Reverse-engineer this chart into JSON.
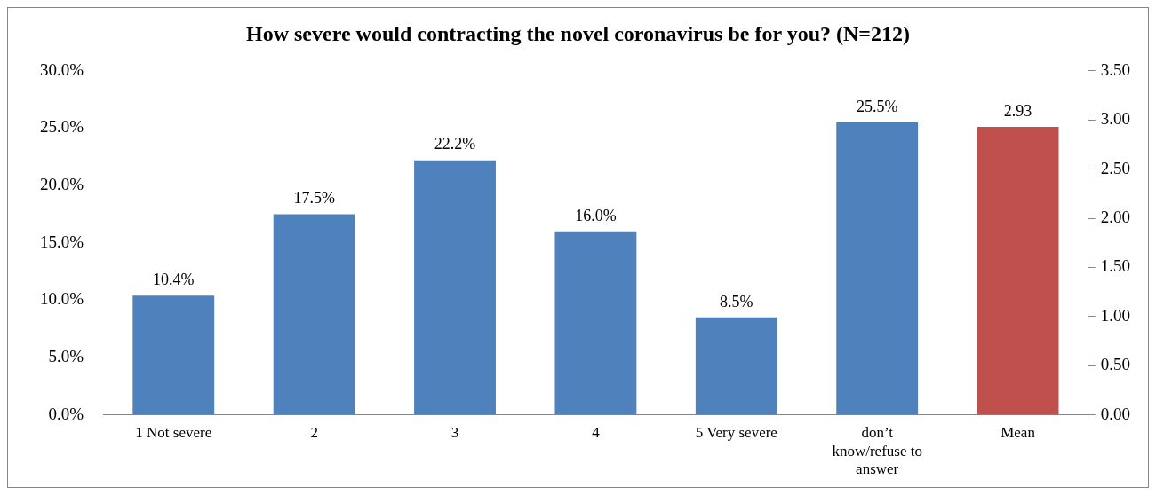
{
  "chart_data": {
    "type": "bar",
    "title": "How severe would contracting the novel coronavirus be for you? (N=212)",
    "categories": [
      "1 Not severe",
      "2",
      "3",
      "4",
      "5 Very severe",
      "don’t know/refuse to answer",
      "Mean"
    ],
    "series": [
      {
        "color": "#4f81bd",
        "values": [
          10.4,
          17.5,
          22.2,
          16.0,
          8.5,
          25.5,
          null
        ],
        "value_labels": [
          "10.4%",
          "17.5%",
          "22.2%",
          "16.0%",
          "8.5%",
          "25.5%",
          null
        ]
      },
      {
        "color": "#c0504d",
        "axis": "y2",
        "values": [
          null,
          null,
          null,
          null,
          null,
          null,
          2.93
        ],
        "value_labels": [
          null,
          null,
          null,
          null,
          null,
          null,
          "2.93"
        ]
      }
    ],
    "ylim": [
      0,
      30
    ],
    "yticks": [
      {
        "value": 0,
        "label": "0.0%"
      },
      {
        "value": 5,
        "label": "5.0%"
      },
      {
        "value": 10,
        "label": "10.0%"
      },
      {
        "value": 15,
        "label": "15.0%"
      },
      {
        "value": 20,
        "label": "20.0%"
      },
      {
        "value": 25,
        "label": "25.0%"
      },
      {
        "value": 30,
        "label": "30.0%"
      }
    ],
    "y2lim": [
      0,
      3.5
    ],
    "y2ticks": [
      {
        "value": 0,
        "label": "0.00"
      },
      {
        "value": 0.5,
        "label": "0.50"
      },
      {
        "value": 1,
        "label": "1.00"
      },
      {
        "value": 1.5,
        "label": "1.50"
      },
      {
        "value": 2,
        "label": "2.00"
      },
      {
        "value": 2.5,
        "label": "2.50"
      },
      {
        "value": 3,
        "label": "3.00"
      },
      {
        "value": 3.5,
        "label": "3.50"
      }
    ],
    "grid": false,
    "legend": false
  }
}
